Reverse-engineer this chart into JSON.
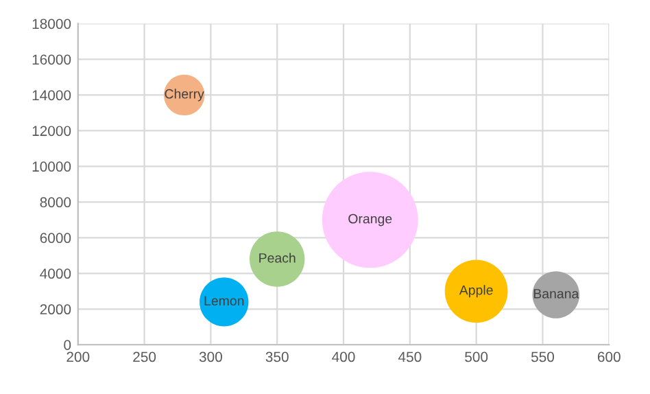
{
  "chart_data": {
    "type": "bubble",
    "series": [
      {
        "name": "Cherry",
        "color": "#f4b183",
        "x": [
          280
        ],
        "values": [
          14000
        ],
        "sizes": [
          0.18
        ]
      },
      {
        "name": "Lemon",
        "color": "#00b0f0",
        "x": [
          310
        ],
        "values": [
          2400
        ],
        "sizes": [
          0.26
        ]
      },
      {
        "name": "Peach",
        "color": "#a9d18e",
        "x": [
          350
        ],
        "values": [
          4800
        ],
        "sizes": [
          0.33
        ]
      },
      {
        "name": "Orange",
        "color": "#ffccff",
        "x": [
          420
        ],
        "values": [
          7000
        ],
        "sizes": [
          1
        ]
      },
      {
        "name": "Apple",
        "color": "#ffc000",
        "x": [
          500
        ],
        "values": [
          3000
        ],
        "sizes": [
          0.43
        ]
      },
      {
        "name": "Banana",
        "color": "#a5a5a5",
        "x": [
          560
        ],
        "values": [
          2800
        ],
        "sizes": [
          0.24
        ]
      }
    ],
    "xlim": [
      200,
      600
    ],
    "xticks": [
      200,
      250,
      300,
      350,
      400,
      450,
      500,
      550,
      600
    ],
    "ylim": [
      0,
      18000
    ],
    "yticks": [
      0,
      2000,
      4000,
      6000,
      8000,
      10000,
      12000,
      14000,
      16000,
      18000
    ],
    "grid": true,
    "legend": false
  }
}
